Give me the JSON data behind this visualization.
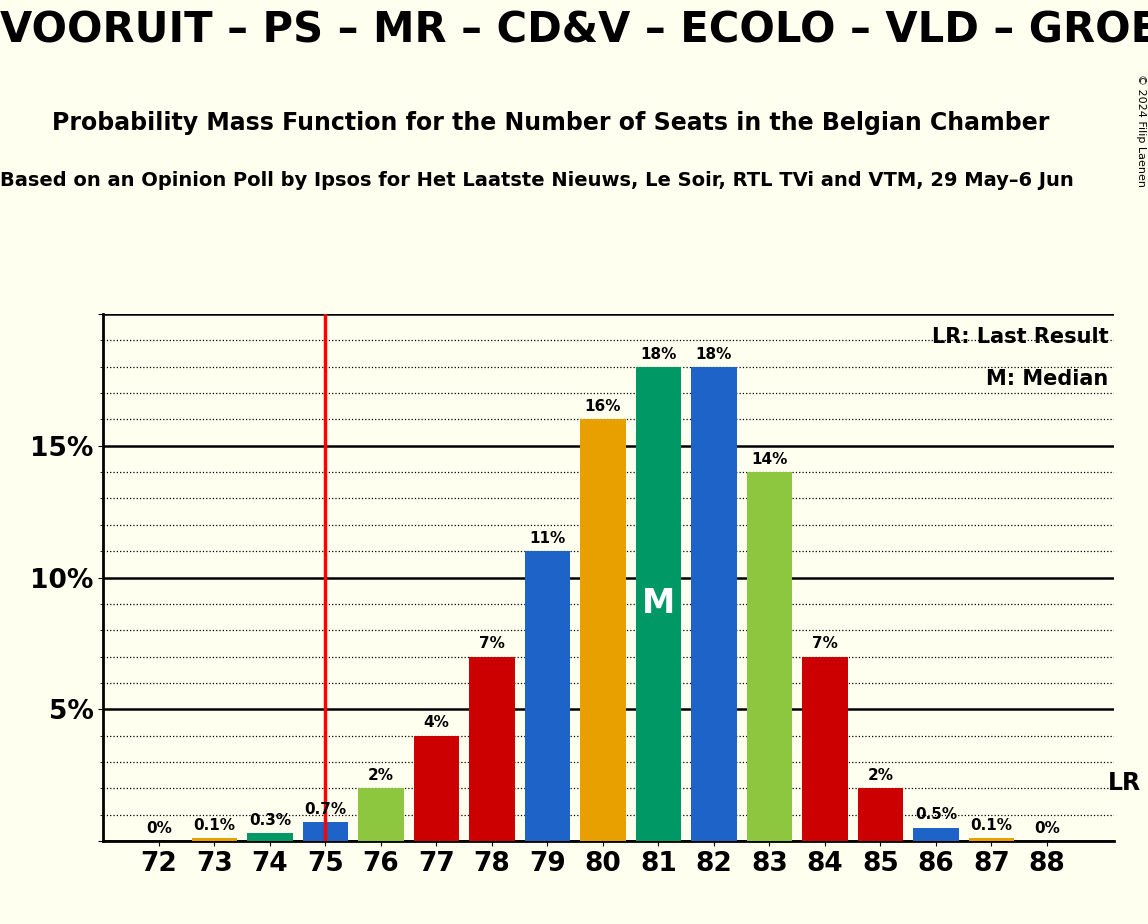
{
  "title1": "VOORUIT – PS – MR – CD&V – ECOLO – VLD – GROEN",
  "title2": "Probability Mass Function for the Number of Seats in the Belgian Chamber",
  "title3": "Based on an Opinion Poll by Ipsos for Het Laatste Nieuws, Le Soir, RTL TVi and VTM, 29 May–6 Jun",
  "copyright": "© 2024 Filip Laenen",
  "seats": [
    72,
    73,
    74,
    75,
    76,
    77,
    78,
    79,
    80,
    81,
    82,
    83,
    84,
    85,
    86,
    87,
    88
  ],
  "probabilities": [
    0.0,
    0.1,
    0.3,
    0.7,
    2.0,
    4.0,
    7.0,
    11.0,
    16.0,
    18.0,
    18.0,
    14.0,
    7.0,
    2.0,
    0.5,
    0.1,
    0.0
  ],
  "bar_colors": [
    "#e8a000",
    "#e8a000",
    "#009966",
    "#1e64c8",
    "#8dc63f",
    "#cc0000",
    "#cc0000",
    "#1e64c8",
    "#e8a000",
    "#009966",
    "#1e64c8",
    "#8dc63f",
    "#cc0000",
    "#cc0000",
    "#1e64c8",
    "#e8a000",
    "#e8a000"
  ],
  "median_seat": 81,
  "last_result_seat": 75,
  "background_color": "#fffff0",
  "legend_lr": "LR: Last Result",
  "legend_m": "M: Median",
  "lr_label": "LR",
  "median_label": "M"
}
